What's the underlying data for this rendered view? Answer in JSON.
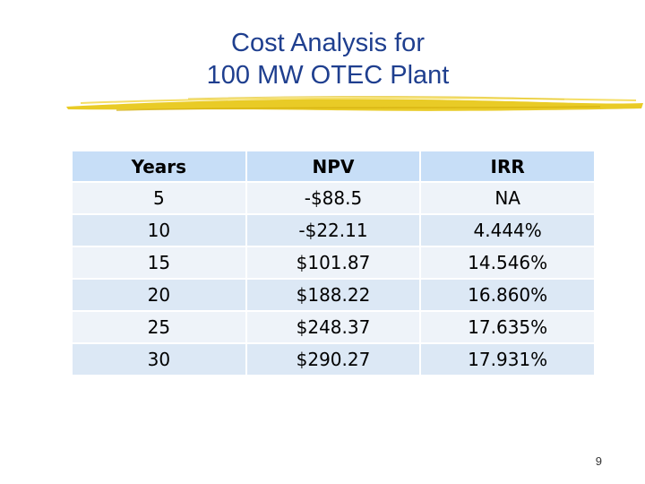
{
  "slide": {
    "title_line1": "Cost Analysis for",
    "title_line2": "100 MW OTEC Plant",
    "page_number": "9"
  },
  "table": {
    "headers": [
      "Years",
      "NPV",
      "IRR"
    ],
    "rows": [
      [
        "5",
        "-$88.5",
        "NA"
      ],
      [
        "10",
        "-$22.11",
        "4.444%"
      ],
      [
        "15",
        "$101.87",
        "14.546%"
      ],
      [
        "20",
        "$188.22",
        "16.860%"
      ],
      [
        "25",
        "$248.37",
        "17.635%"
      ],
      [
        "30",
        "$290.27",
        "17.931%"
      ]
    ]
  },
  "colors": {
    "title": "#1f3f8f",
    "brush": "#e8c81a",
    "header_bg": "#c7def7",
    "row_light": "#eef3f9",
    "row_dark": "#dce8f5"
  }
}
